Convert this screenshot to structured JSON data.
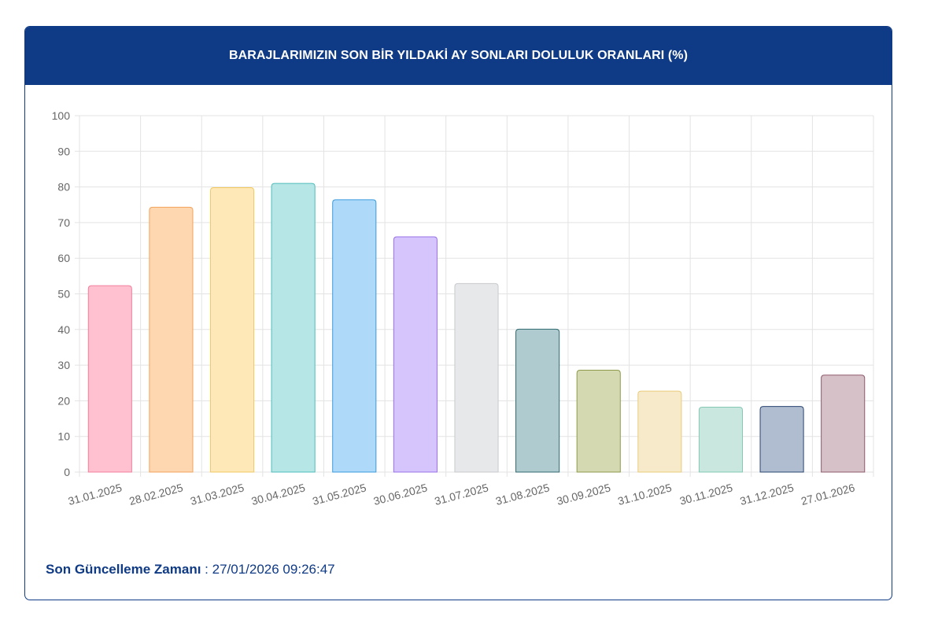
{
  "header": {
    "title": "BARAJLARIMIZIN SON BİR YILDAKİ AY SONLARI DOLULUK ORANLARI (%)"
  },
  "footer": {
    "label": "Son Güncelleme Zamanı",
    "separator": " : ",
    "value": "27/01/2026 09:26:47"
  },
  "colors": {
    "brand": "#0f3a85"
  },
  "chart_data": {
    "type": "bar",
    "title": "",
    "xlabel": "",
    "ylabel": "",
    "ylim": [
      0,
      100
    ],
    "yticks": [
      0,
      10,
      20,
      30,
      40,
      50,
      60,
      70,
      80,
      90,
      100
    ],
    "grid": true,
    "categories": [
      "31.01.2025",
      "28.02.2025",
      "31.03.2025",
      "30.04.2025",
      "31.05.2025",
      "30.06.2025",
      "31.07.2025",
      "31.08.2025",
      "30.09.2025",
      "31.10.2025",
      "30.11.2025",
      "31.12.2025",
      "27.01.2026"
    ],
    "values": [
      52.3,
      74.3,
      79.8,
      81.0,
      76.4,
      66.0,
      52.9,
      40.1,
      28.6,
      22.7,
      18.2,
      18.4,
      27.2
    ],
    "bar_colors": [
      {
        "fill": "#ffc0cf",
        "stroke": "#f07f9c"
      },
      {
        "fill": "#fed6b0",
        "stroke": "#f2a35c"
      },
      {
        "fill": "#ffe8b8",
        "stroke": "#f2ca60"
      },
      {
        "fill": "#b6e7e6",
        "stroke": "#4fbdbb"
      },
      {
        "fill": "#afd9f8",
        "stroke": "#3a9bdc"
      },
      {
        "fill": "#d6c4fd",
        "stroke": "#9870e6"
      },
      {
        "fill": "#e7e8ea",
        "stroke": "#c8cacd"
      },
      {
        "fill": "#b0cbcf",
        "stroke": "#2f6a70"
      },
      {
        "fill": "#d5d9b1",
        "stroke": "#8e9a4a"
      },
      {
        "fill": "#f7eacb",
        "stroke": "#e9cc7a"
      },
      {
        "fill": "#c9e7df",
        "stroke": "#84c8b4"
      },
      {
        "fill": "#b0bcd0",
        "stroke": "#2a4670"
      },
      {
        "fill": "#d7c1c8",
        "stroke": "#8e5a6a"
      }
    ]
  }
}
